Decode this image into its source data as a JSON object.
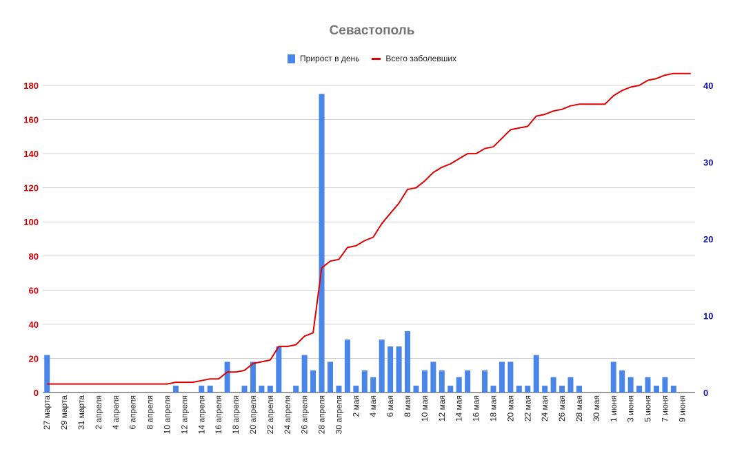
{
  "chart_data": {
    "type": "bar+line",
    "title": "Севастополь",
    "legend": [
      {
        "label": "Прирост в день",
        "color": "#4a86e8",
        "kind": "bar"
      },
      {
        "label": "Всего заболевших",
        "color": "#e00000",
        "kind": "line"
      }
    ],
    "legend_position": "top",
    "grid": true,
    "left_axis": {
      "ticks": [
        "0",
        "20",
        "40",
        "60",
        "80",
        "100",
        "120",
        "140",
        "160",
        "180"
      ],
      "ylim": [
        0,
        180
      ],
      "color": "#cc0000"
    },
    "right_axis": {
      "ticks": [
        "0",
        "10",
        "20",
        "30",
        "40"
      ],
      "ylim": [
        0,
        40
      ],
      "color": "#1010a0"
    },
    "x": [
      "27 марта",
      "28 марта",
      "29 марта",
      "30 марта",
      "31 марта",
      "1 апреля",
      "2 апреля",
      "3 апреля",
      "4 апреля",
      "5 апреля",
      "6 апреля",
      "7 апреля",
      "8 апреля",
      "9 апреля",
      "10 апреля",
      "11 апреля",
      "12 апреля",
      "13 апреля",
      "14 апреля",
      "15 апреля",
      "16 апреля",
      "17 апреля",
      "18 апреля",
      "19 апреля",
      "20 апреля",
      "21 апреля",
      "22 апреля",
      "23 апреля",
      "24 апреля",
      "25 апреля",
      "26 апреля",
      "27 апреля",
      "28 апреля",
      "29 апреля",
      "30 апреля",
      "1 мая",
      "2 мая",
      "3 мая",
      "4 мая",
      "5 мая",
      "6 мая",
      "7 мая",
      "8 мая",
      "9 мая",
      "10 мая",
      "11 мая",
      "12 мая",
      "13 мая",
      "14 мая",
      "15 мая",
      "16 мая",
      "17 мая",
      "18 мая",
      "19 мая",
      "20 мая",
      "21 мая",
      "22 мая",
      "23 мая",
      "24 мая",
      "25 мая",
      "26 мая",
      "27 мая",
      "28 мая",
      "29 мая",
      "30 мая",
      "31 мая",
      "1 июня",
      "2 июня",
      "3 июня",
      "4 июня",
      "5 июня",
      "6 июня",
      "7 июня",
      "8 июня",
      "9 июня",
      "10 июня"
    ],
    "tick_labels_shown": [
      "27 марта",
      "29 марта",
      "31 марта",
      "2 апреля",
      "4 апреля",
      "6 апреля",
      "8 апреля",
      "10 апреля",
      "12 апреля",
      "14 апреля",
      "16 апреля",
      "18 апреля",
      "20 апреля",
      "22 апреля",
      "24 апреля",
      "26 апреля",
      "28 апреля",
      "30 апреля",
      "2 мая",
      "4 мая",
      "6 мая",
      "8 мая",
      "10 мая",
      "12 мая",
      "14 мая",
      "16 мая",
      "18 мая",
      "20 мая",
      "22 мая",
      "24 мая",
      "26 мая",
      "28 мая",
      "30 мая",
      "1 июня",
      "3 июня",
      "5 июня",
      "7 июня",
      "9 июня"
    ],
    "series": [
      {
        "name": "Прирост в день",
        "type": "bar",
        "axis": "left",
        "values": [
          22,
          0,
          0,
          0,
          0,
          0,
          0,
          0,
          0,
          0,
          0,
          0,
          0,
          0,
          0,
          4,
          0,
          0,
          4,
          4,
          0,
          18,
          0,
          4,
          18,
          4,
          4,
          27,
          0,
          4,
          22,
          13,
          175,
          18,
          4,
          31,
          4,
          13,
          9,
          31,
          27,
          27,
          36,
          4,
          13,
          18,
          13,
          4,
          9,
          13,
          0,
          13,
          4,
          18,
          18,
          4,
          4,
          22,
          4,
          9,
          4,
          9,
          4,
          0,
          0,
          0,
          18,
          13,
          9,
          4,
          9,
          4,
          9,
          4,
          0,
          0
        ]
      },
      {
        "name": "Всего заболевших",
        "type": "line",
        "axis": "left",
        "values": [
          5,
          5,
          5,
          5,
          5,
          5,
          5,
          5,
          5,
          5,
          5,
          5,
          5,
          5,
          5,
          6,
          6,
          6,
          7,
          8,
          8,
          12,
          12,
          13,
          17,
          18,
          19,
          27,
          27,
          28,
          33,
          35,
          73,
          77,
          78,
          85,
          86,
          89,
          91,
          99,
          105,
          111,
          119,
          120,
          124,
          129,
          132,
          134,
          137,
          140,
          140,
          143,
          144,
          149,
          154,
          155,
          156,
          162,
          163,
          165,
          166,
          168,
          169,
          169,
          169,
          169,
          174,
          177,
          179,
          180,
          183,
          184,
          186,
          187,
          187,
          187
        ]
      }
    ]
  }
}
